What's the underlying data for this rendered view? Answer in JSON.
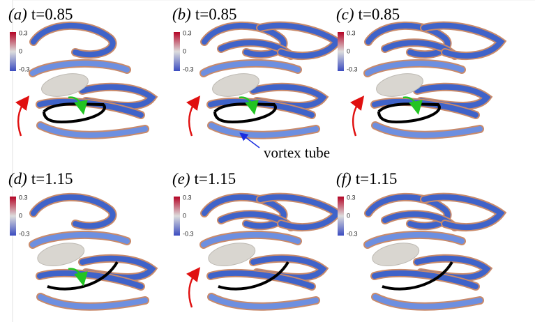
{
  "panels": [
    {
      "label": "(a)",
      "time": "t=0.85"
    },
    {
      "label": "(b)",
      "time": "t=0.85"
    },
    {
      "label": "(c)",
      "time": "t=0.85"
    },
    {
      "label": "(d)",
      "time": "t=1.15"
    },
    {
      "label": "(e)",
      "time": "t=1.15"
    },
    {
      "label": "(f)",
      "time": "t=1.15"
    }
  ],
  "colorbar": {
    "max": "0.3",
    "mid": "0",
    "min": "-0.3"
  },
  "annotation": "vortex tube"
}
